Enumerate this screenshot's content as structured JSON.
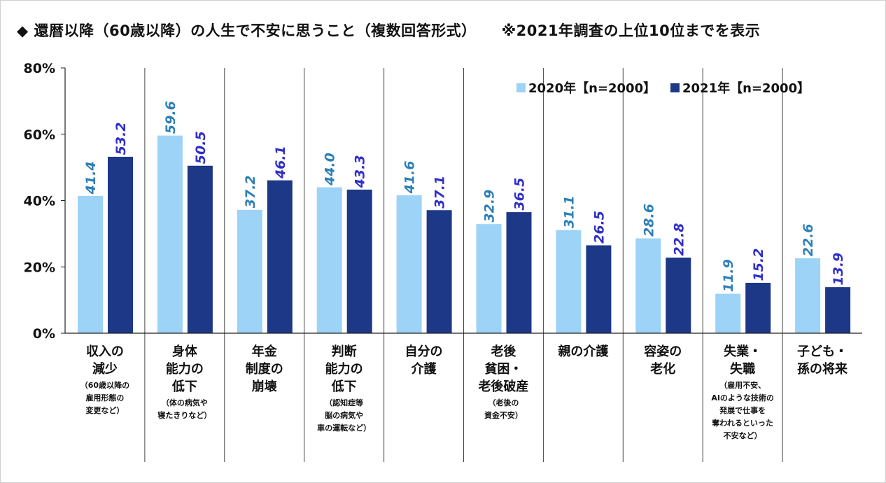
{
  "title": "◆ 還暦以降（60歳以降）の人生で不安に思うこと（複数回答形式）",
  "note": "※2021年調査の上位10位までを表示",
  "colors": {
    "series_2020": "#9dd3f7",
    "series_2021": "#1c3887",
    "label_2020": "#2c7fb8",
    "label_2021": "#2f2fc8"
  },
  "chart_data": {
    "type": "bar",
    "ylim": [
      0,
      80
    ],
    "y_ticks": [
      "0%",
      "20%",
      "40%",
      "60%",
      "80%"
    ],
    "y_tick_values": [
      0,
      20,
      40,
      60,
      80
    ],
    "categories": [
      {
        "main": "収入の\n減少",
        "sub": "（60歳以降の\n雇用形態の\n変更など）"
      },
      {
        "main": "身体\n能力の\n低下",
        "sub": "（体の病気や\n寝たきりなど）"
      },
      {
        "main": "年金\n制度の\n崩壊",
        "sub": ""
      },
      {
        "main": "判断\n能力の\n低下",
        "sub": "（認知症等\n脳の病気や\n車の運転など）"
      },
      {
        "main": "自分の\n介護",
        "sub": ""
      },
      {
        "main": "老後\n貧困・\n老後破産",
        "sub": "（老後の\n資金不安）"
      },
      {
        "main": "親の介護",
        "sub": ""
      },
      {
        "main": "容姿の\n老化",
        "sub": ""
      },
      {
        "main": "失業・\n失職",
        "sub": "（雇用不安、\nAIのような技術の\n発展で仕事を\n奪われるといった\n不安など）"
      },
      {
        "main": "子ども・\n孫の将来",
        "sub": ""
      }
    ],
    "series": [
      {
        "name": "2020年【n=2000】",
        "values": [
          41.4,
          59.6,
          37.2,
          44.0,
          41.6,
          32.9,
          31.1,
          28.6,
          11.9,
          22.6
        ],
        "labels": [
          "41.4",
          "59.6",
          "37.2",
          "44.0",
          "41.6",
          "32.9",
          "31.1",
          "28.6",
          "11.9",
          "22.6"
        ]
      },
      {
        "name": "2021年【n=2000】",
        "values": [
          53.2,
          50.5,
          46.1,
          43.3,
          37.1,
          36.5,
          26.5,
          22.8,
          15.2,
          13.9
        ],
        "labels": [
          "53.2",
          "50.5",
          "46.1",
          "43.3",
          "37.1",
          "36.5",
          "26.5",
          "22.8",
          "15.2",
          "13.9"
        ]
      }
    ],
    "legend_position": "top-right"
  }
}
